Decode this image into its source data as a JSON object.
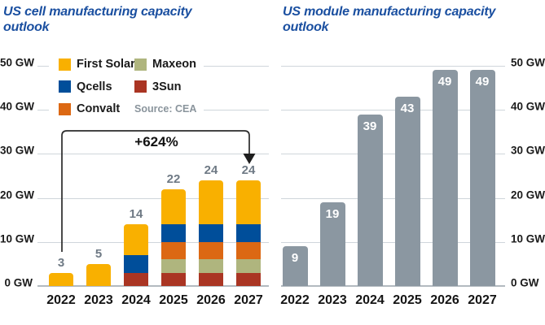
{
  "chart_data": [
    {
      "type": "stacked-bar",
      "title": "US cell manufacturing capacity outlook",
      "unit": "GW",
      "categories": [
        "2022",
        "2023",
        "2024",
        "2025",
        "2026",
        "2027"
      ],
      "series": [
        {
          "name": "3Sun",
          "color": "#AA3523",
          "values": [
            0,
            0,
            3,
            3,
            3,
            3
          ]
        },
        {
          "name": "Maxeon",
          "color": "#AFB57E",
          "values": [
            0,
            0,
            0,
            3,
            3,
            3
          ]
        },
        {
          "name": "Convalt",
          "color": "#DC6813",
          "values": [
            0,
            0,
            0,
            4,
            4,
            4
          ]
        },
        {
          "name": "Qcells",
          "color": "#004E9A",
          "values": [
            0,
            0,
            4,
            4,
            4,
            4
          ]
        },
        {
          "name": "First Solar",
          "color": "#F9B000",
          "values": [
            3,
            5,
            7,
            8,
            10,
            10
          ]
        }
      ],
      "totals": [
        3,
        5,
        14,
        22,
        24,
        24
      ],
      "y_ticks": [
        "0 GW",
        "10 GW",
        "20 GW",
        "30 GW",
        "40 GW",
        "50 GW"
      ],
      "ylim": [
        0,
        50
      ],
      "grid": true,
      "legend_position": "top-left",
      "legend_columns": [
        [
          "First Solar",
          "Qcells",
          "Convalt"
        ],
        [
          "Maxeon",
          "3Sun"
        ]
      ],
      "source": "Source: CEA",
      "annotation": {
        "text": "+624%",
        "from_category": "2022",
        "to_category": "2027"
      }
    },
    {
      "type": "bar",
      "title": "US module manufacturing capacity outlook",
      "unit": "GW",
      "categories": [
        "2022",
        "2023",
        "2024",
        "2025",
        "2026",
        "2027"
      ],
      "values": [
        9,
        19,
        39,
        43,
        49,
        49
      ],
      "bar_color": "#8B97A1",
      "value_label_color": "#FFFFFF",
      "y_ticks": [
        "0 GW",
        "10 GW",
        "20 GW",
        "30 GW",
        "40 GW",
        "50 GW"
      ],
      "ylim": [
        0,
        50
      ],
      "grid": true,
      "y_axis_side": "right"
    }
  ],
  "styles": {
    "title_color": "#1A4FA0",
    "grid_color": "#CFD6DB",
    "axis_line_color": "#B3BAC0",
    "value_label_color_left": "#6F7A85",
    "tick_label_color": "#1A1A1A",
    "source_color": "#8A949C",
    "arrow_color": "#2B2B2B"
  }
}
